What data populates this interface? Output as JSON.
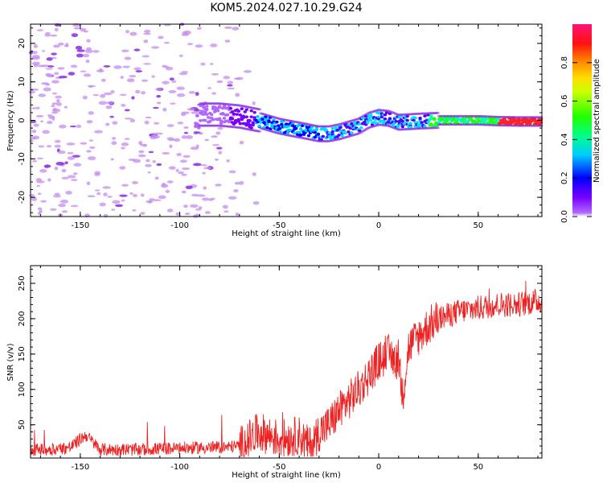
{
  "title": "KOM5.2024.027.10.29.G24",
  "colors": {
    "snr_line": "#ee2222",
    "noise_speckle": "#c68cf0",
    "frame": "#000000"
  },
  "colorbar": {
    "label": "Normalized spectral amplitude",
    "ticks": [
      "0.0",
      "0.2",
      "0.4",
      "0.6",
      "0.8"
    ],
    "tick_values": [
      0.0,
      0.2,
      0.4,
      0.6,
      0.8
    ],
    "range": [
      0,
      1
    ],
    "colormap": "gist_rainbow_r"
  },
  "chart_data": [
    {
      "type": "heatmap",
      "xlabel": "Height of straight line (km)",
      "ylabel": "Frequency (Hz)",
      "xlim": [
        -175,
        82
      ],
      "ylim": [
        -25,
        25
      ],
      "xticks": [
        -150,
        -100,
        -50,
        0,
        50
      ],
      "xtick_labels": [
        "-150",
        "-100",
        "-50",
        "0",
        "50"
      ],
      "yticks": [
        -20,
        -10,
        0,
        10,
        20
      ],
      "ytick_labels": [
        "-20",
        "-10",
        "0",
        "10",
        "20"
      ],
      "noise_region_x": [
        -175,
        -70
      ],
      "ridge": {
        "x": [
          -90,
          -80,
          -70,
          -60,
          -50,
          -40,
          -30,
          -25,
          -20,
          -10,
          -5,
          0,
          5,
          10,
          20,
          30,
          40,
          50,
          60,
          70,
          82
        ],
        "y": [
          1.5,
          1.5,
          1.0,
          0.0,
          -1.5,
          -2.5,
          -3.5,
          -3.5,
          -3.0,
          -1.5,
          0.0,
          0.8,
          0.5,
          -0.5,
          -0.2,
          0.0,
          0.0,
          0.0,
          -0.2,
          -0.3,
          -0.3
        ]
      },
      "grid": false
    },
    {
      "type": "line",
      "xlabel": "Height of straight line (km)",
      "ylabel": "SNR (v/v)",
      "xlim": [
        -175,
        82
      ],
      "ylim": [
        3,
        275
      ],
      "xticks": [
        -150,
        -100,
        -50,
        0,
        50
      ],
      "xtick_labels": [
        "-150",
        "-100",
        "-50",
        "0",
        "50"
      ],
      "yticks": [
        50,
        100,
        150,
        200,
        250
      ],
      "ytick_labels": [
        "50",
        "100",
        "150",
        "200",
        "250"
      ],
      "series": [
        {
          "x": [
            -175,
            -165,
            -155,
            -150,
            -147,
            -140,
            -120,
            -100,
            -80,
            -70,
            -65,
            -60,
            -55,
            -50,
            -45,
            -40,
            -35,
            -33,
            -30,
            -25,
            -20,
            -15,
            -10,
            -5,
            0,
            5,
            10,
            12,
            15,
            20,
            25,
            30,
            40,
            50,
            60,
            70,
            80,
            82
          ],
          "y": [
            15,
            15,
            18,
            30,
            35,
            15,
            15,
            17,
            18,
            20,
            30,
            40,
            35,
            30,
            32,
            35,
            20,
            25,
            40,
            50,
            70,
            85,
            100,
            120,
            140,
            150,
            140,
            90,
            160,
            175,
            190,
            200,
            210,
            215,
            220,
            220,
            225,
            225
          ]
        }
      ],
      "grid": false
    }
  ]
}
